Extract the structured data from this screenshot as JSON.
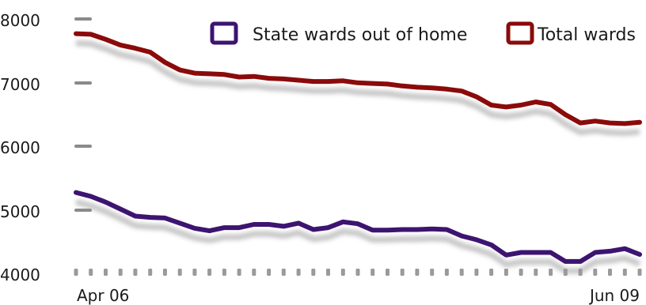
{
  "chart_data": {
    "type": "line",
    "title": "",
    "xlabel": "",
    "ylabel": "",
    "ylim": [
      4000,
      8000
    ],
    "yticks": [
      "8000",
      "7000",
      "6000",
      "5000",
      "4000"
    ],
    "xtick_labels": {
      "first": "Apr 06",
      "last": "Jun 09"
    },
    "grid": false,
    "legend_position": "top-right",
    "x_count": 39,
    "series": [
      {
        "name": "State wards out of home",
        "color": "#3d1470",
        "values": [
          5280,
          5220,
          5130,
          5020,
          4910,
          4890,
          4880,
          4800,
          4720,
          4680,
          4730,
          4730,
          4780,
          4780,
          4750,
          4800,
          4700,
          4730,
          4820,
          4790,
          4690,
          4690,
          4700,
          4700,
          4710,
          4700,
          4600,
          4540,
          4460,
          4300,
          4340,
          4340,
          4340,
          4200,
          4200,
          4340,
          4360,
          4400,
          4310
        ]
      },
      {
        "name": "Total wards",
        "color": "#8b0a0a",
        "values": [
          7770,
          7760,
          7680,
          7590,
          7540,
          7480,
          7320,
          7200,
          7150,
          7140,
          7130,
          7090,
          7100,
          7070,
          7060,
          7040,
          7020,
          7020,
          7030,
          7000,
          6990,
          6980,
          6950,
          6930,
          6920,
          6900,
          6870,
          6780,
          6650,
          6620,
          6650,
          6700,
          6660,
          6500,
          6370,
          6400,
          6370,
          6360,
          6380
        ]
      }
    ]
  }
}
